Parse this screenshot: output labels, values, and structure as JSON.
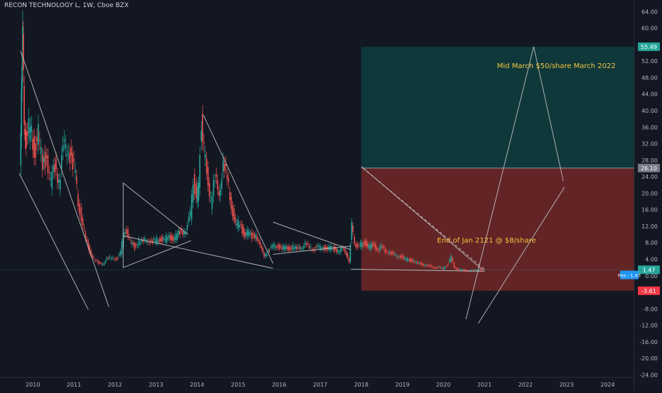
{
  "header": {
    "title": "RECON TECHNOLOGY L, 1W, Cboe BZX"
  },
  "colors": {
    "background": "#131722",
    "up": "#26a69a",
    "down": "#ef5350",
    "profit_zone": "#0e3a3c",
    "loss_zone": "#6b2626",
    "drawing": "#c8c8c8",
    "annotation_text": "#f4c542",
    "price_tag_profit": "#26a69a",
    "price_tag_entry": "#787b86",
    "price_tag_loss": "#f23645",
    "price_tag_last": "#26a69a",
    "price_tag_pos": "#2196f3"
  },
  "chart_data": {
    "type": "candlestick",
    "title": "RECON TECHNOLOGY L, 1W, Cboe BZX",
    "x_tick_labels": [
      "2010",
      "2011",
      "2012",
      "2013",
      "2014",
      "2015",
      "2016",
      "2017",
      "2018",
      "2019",
      "2020",
      "2021",
      "2022",
      "2023",
      "2024"
    ],
    "xlim": [
      2009.2,
      2024.65
    ],
    "y_tick_labels": [
      "64.00",
      "60.00",
      "56.00",
      "52.00",
      "48.00",
      "44.00",
      "40.00",
      "36.00",
      "32.00",
      "28.00",
      "24.00",
      "20.00",
      "16.00",
      "12.00",
      "8.00",
      "4.00",
      "0.00",
      "-4.00",
      "-8.00",
      "-12.00",
      "-16.00",
      "-20.00",
      "-24.00"
    ],
    "ylim": [
      -24.6,
      66.8
    ],
    "series": [
      {
        "name": "price",
        "points": [
          [
            2009.7,
            25.5
          ],
          [
            2009.73,
            48.0
          ],
          [
            2009.76,
            56.0
          ],
          [
            2009.8,
            38.0
          ],
          [
            2009.85,
            32.0
          ],
          [
            2009.95,
            37.0
          ],
          [
            2010.05,
            30.0
          ],
          [
            2010.15,
            34.0
          ],
          [
            2010.25,
            27.0
          ],
          [
            2010.35,
            29.0
          ],
          [
            2010.45,
            22.0
          ],
          [
            2010.55,
            27.0
          ],
          [
            2010.65,
            23.0
          ],
          [
            2010.75,
            30.0
          ],
          [
            2010.85,
            32.0
          ],
          [
            2010.95,
            28.0
          ],
          [
            2011.05,
            25.0
          ],
          [
            2011.12,
            17.0
          ],
          [
            2011.2,
            14.0
          ],
          [
            2011.3,
            9.0
          ],
          [
            2011.4,
            6.0
          ],
          [
            2011.5,
            4.0
          ],
          [
            2011.62,
            3.0
          ],
          [
            2011.72,
            3.0
          ],
          [
            2011.82,
            4.0
          ],
          [
            2011.93,
            4.5
          ],
          [
            2012.05,
            4.0
          ],
          [
            2012.15,
            5.5
          ],
          [
            2012.22,
            10.0
          ],
          [
            2012.3,
            11.0
          ],
          [
            2012.4,
            8.0
          ],
          [
            2012.5,
            7.0
          ],
          [
            2012.6,
            8.5
          ],
          [
            2012.7,
            8.0
          ],
          [
            2012.8,
            9.0
          ],
          [
            2012.9,
            8.0
          ],
          [
            2013.0,
            8.5
          ],
          [
            2013.1,
            9.0
          ],
          [
            2013.2,
            8.5
          ],
          [
            2013.3,
            9.5
          ],
          [
            2013.4,
            9.0
          ],
          [
            2013.5,
            9.5
          ],
          [
            2013.6,
            10.5
          ],
          [
            2013.7,
            11.0
          ],
          [
            2013.78,
            12.0
          ],
          [
            2013.85,
            15.0
          ],
          [
            2013.92,
            24.0
          ],
          [
            2014.0,
            18.0
          ],
          [
            2014.05,
            22.0
          ],
          [
            2014.12,
            38.0
          ],
          [
            2014.18,
            30.0
          ],
          [
            2014.25,
            25.0
          ],
          [
            2014.35,
            18.0
          ],
          [
            2014.45,
            23.0
          ],
          [
            2014.55,
            21.0
          ],
          [
            2014.65,
            26.0
          ],
          [
            2014.75,
            24.0
          ],
          [
            2014.85,
            17.0
          ],
          [
            2014.95,
            12.0
          ],
          [
            2015.05,
            13.0
          ],
          [
            2015.15,
            10.0
          ],
          [
            2015.25,
            10.5
          ],
          [
            2015.35,
            9.5
          ],
          [
            2015.45,
            10.0
          ],
          [
            2015.55,
            7.0
          ],
          [
            2015.65,
            5.0
          ],
          [
            2015.75,
            6.0
          ],
          [
            2015.85,
            7.0
          ],
          [
            2015.95,
            7.5
          ],
          [
            2016.05,
            6.5
          ],
          [
            2016.15,
            7.0
          ],
          [
            2016.25,
            6.5
          ],
          [
            2016.35,
            7.0
          ],
          [
            2016.45,
            6.5
          ],
          [
            2016.55,
            7.0
          ],
          [
            2016.65,
            7.5
          ],
          [
            2016.75,
            7.0
          ],
          [
            2016.85,
            6.5
          ],
          [
            2016.95,
            6.8
          ],
          [
            2017.05,
            7.0
          ],
          [
            2017.15,
            6.5
          ],
          [
            2017.25,
            6.8
          ],
          [
            2017.35,
            6.5
          ],
          [
            2017.45,
            6.0
          ],
          [
            2017.55,
            6.5
          ],
          [
            2017.65,
            5.5
          ],
          [
            2017.72,
            3.5
          ],
          [
            2017.78,
            12.0
          ],
          [
            2017.85,
            8.0
          ],
          [
            2017.92,
            7.0
          ],
          [
            2018.0,
            7.5
          ],
          [
            2018.1,
            8.0
          ],
          [
            2018.2,
            7.0
          ],
          [
            2018.3,
            7.5
          ],
          [
            2018.4,
            6.5
          ],
          [
            2018.5,
            7.0
          ],
          [
            2018.6,
            6.0
          ],
          [
            2018.7,
            5.8
          ],
          [
            2018.8,
            5.0
          ],
          [
            2018.9,
            4.8
          ],
          [
            2019.0,
            4.5
          ],
          [
            2019.1,
            4.0
          ],
          [
            2019.2,
            3.8
          ],
          [
            2019.3,
            3.5
          ],
          [
            2019.4,
            3.0
          ],
          [
            2019.5,
            2.8
          ],
          [
            2019.6,
            2.5
          ],
          [
            2019.7,
            2.3
          ],
          [
            2019.8,
            2.0
          ],
          [
            2019.9,
            2.0
          ],
          [
            2020.0,
            1.8
          ],
          [
            2020.1,
            2.5
          ],
          [
            2020.2,
            4.5
          ],
          [
            2020.28,
            2.0
          ],
          [
            2020.35,
            1.6
          ],
          [
            2020.45,
            1.4
          ],
          [
            2020.55,
            1.3
          ],
          [
            2020.65,
            1.2
          ],
          [
            2020.75,
            1.3
          ],
          [
            2020.85,
            1.4
          ],
          [
            2020.95,
            1.45
          ],
          [
            2021.02,
            1.43
          ]
        ]
      }
    ],
    "position": {
      "type": "long",
      "start": 2018.0,
      "end": 2024.65,
      "entry": 26.1,
      "target": 55.49,
      "stop": -3.61
    },
    "drawings": [
      {
        "kind": "line",
        "x1": 2009.7,
        "y1": 54.5,
        "x2": 2011.85,
        "y2": -7.5
      },
      {
        "kind": "line",
        "x1": 2009.67,
        "y1": 24.8,
        "x2": 2011.35,
        "y2": -8.2
      },
      {
        "kind": "line",
        "x1": 2012.2,
        "y1": 22.5,
        "x2": 2013.78,
        "y2": 10.0
      },
      {
        "kind": "line",
        "x1": 2012.2,
        "y1": 2.0,
        "x2": 2013.85,
        "y2": 8.5
      },
      {
        "kind": "line",
        "x1": 2012.2,
        "y1": 22.5,
        "x2": 2012.2,
        "y2": 2.0
      },
      {
        "kind": "line",
        "x1": 2012.2,
        "y1": 9.7,
        "x2": 2015.85,
        "y2": 1.8
      },
      {
        "kind": "line",
        "x1": 2014.15,
        "y1": 39.0,
        "x2": 2015.85,
        "y2": 3.0
      },
      {
        "kind": "line",
        "x1": 2015.85,
        "y1": 13.0,
        "x2": 2017.75,
        "y2": 6.3
      },
      {
        "kind": "line",
        "x1": 2015.85,
        "y1": 5.2,
        "x2": 2017.75,
        "y2": 7.2
      },
      {
        "kind": "line",
        "x1": 2018.0,
        "y1": 26.5,
        "x2": 2020.95,
        "y2": 1.5
      },
      {
        "kind": "line",
        "x1": 2017.75,
        "y1": 1.6,
        "x2": 2021.0,
        "y2": 1.1
      },
      {
        "kind": "line",
        "x1": 2020.55,
        "y1": -10.5,
        "x2": 2022.2,
        "y2": 55.5
      },
      {
        "kind": "line",
        "x1": 2022.2,
        "y1": 55.5,
        "x2": 2022.92,
        "y2": 23.0
      },
      {
        "kind": "line",
        "x1": 2020.85,
        "y1": -11.5,
        "x2": 2022.95,
        "y2": 21.5
      },
      {
        "kind": "dashed",
        "x1": 2018.05,
        "y1": 26.0,
        "x2": 2021.0,
        "y2": 1.6
      }
    ],
    "annotations": [
      {
        "text": "Mid March $50/share March 2022",
        "x": 2022.75,
        "y": 50.3
      },
      {
        "text": "End of Jan 2121 @ $8/share",
        "x": 2021.05,
        "y": 8.0
      }
    ],
    "price_tags": [
      {
        "id": "target",
        "text": "55.49",
        "value": 55.49,
        "role": "profit"
      },
      {
        "id": "entry",
        "text": "26.10",
        "value": 26.1,
        "role": "entry"
      },
      {
        "id": "last",
        "text": "1.47",
        "value": 1.47,
        "role": "last"
      },
      {
        "id": "pos",
        "text": "Pos - 1.43",
        "value": 0.2,
        "role": "pos"
      },
      {
        "id": "stop",
        "text": "-3.61",
        "value": -3.61,
        "role": "loss"
      }
    ]
  }
}
